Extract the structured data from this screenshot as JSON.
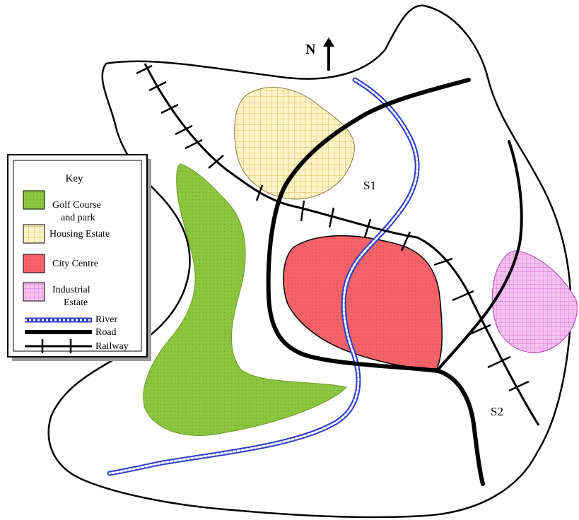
{
  "compass": {
    "label": "N"
  },
  "key": {
    "title": "Key",
    "items": [
      {
        "id": "golf",
        "lines": [
          "Golf Course",
          "and park"
        ]
      },
      {
        "id": "housing",
        "lines": [
          "Housing Estate"
        ]
      },
      {
        "id": "city",
        "lines": [
          "City Centre"
        ]
      },
      {
        "id": "industrial",
        "lines": [
          "Industrial",
          "Estate"
        ]
      },
      {
        "id": "river",
        "lines": [
          "River"
        ]
      },
      {
        "id": "road",
        "lines": [
          "Road"
        ]
      },
      {
        "id": "railway",
        "lines": [
          "Railway"
        ]
      }
    ]
  },
  "sites": {
    "s1": "S1",
    "s2": "S2"
  },
  "colors": {
    "golf": "#8cc63f",
    "housing": "#fbe9a8",
    "city": "#f4626a",
    "industrial": "#f3b6ef",
    "river": "#5b6be3"
  }
}
